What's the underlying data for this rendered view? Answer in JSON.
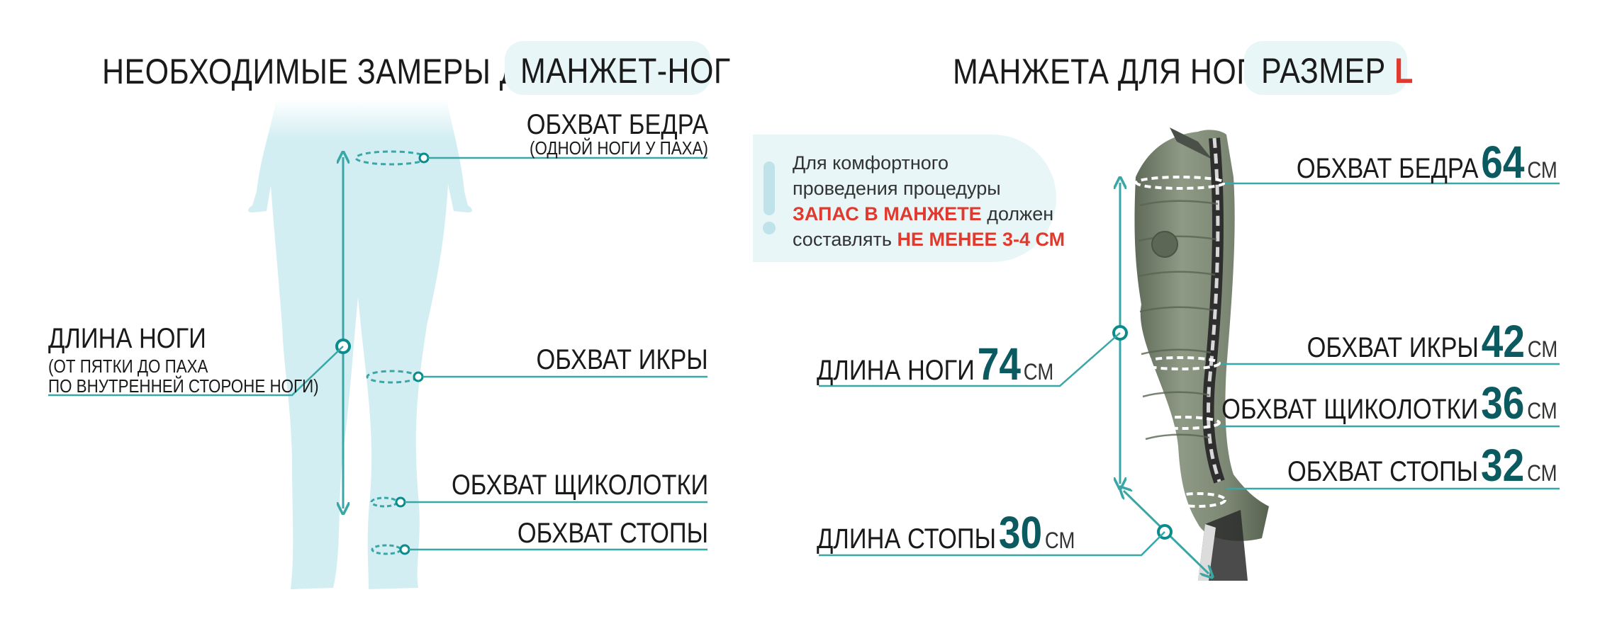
{
  "left": {
    "title": "НЕОБХОДИМЫЕ ЗАМЕРЫ ДЛЯ",
    "title_pill": "МАНЖЕТ-НОГ",
    "thigh_label": "ОБХВАТ БЕДРА",
    "thigh_sub": "(ОДНОЙ НОГИ У ПАХА)",
    "leg_length_label": "ДЛИНА НОГИ",
    "leg_length_sub1": "(ОТ ПЯТКИ ДО ПАХА",
    "leg_length_sub2": "ПО ВНУТРЕННЕЙ СТОРОНЕ НОГИ)",
    "calf_label": "ОБХВАТ ИКРЫ",
    "ankle_label": "ОБХВАТ ЩИКОЛОТКИ",
    "foot_label": "ОБХВАТ СТОПЫ"
  },
  "note": {
    "line1": "Для комфортного",
    "line2": "проведения процедуры",
    "line3_red": "ЗАПАС В МАНЖЕТЕ",
    "line3_rest": " должен",
    "line4": "составлять ",
    "line4_red": "НЕ МЕНЕЕ 3-4 СМ"
  },
  "right": {
    "title": "МАНЖЕТА ДЛЯ НОГИ",
    "size_label": "РАЗМЕР ",
    "size_value": "L",
    "unit": "СМ",
    "thigh_label": "ОБХВАТ БЕДРА",
    "thigh_value": "64",
    "calf_label": "ОБХВАТ ИКРЫ",
    "calf_value": "42",
    "ankle_label": "ОБХВАТ ЩИКОЛОТКИ",
    "ankle_value": "36",
    "foot_label": "ОБХВАТ СТОПЫ",
    "foot_value": "32",
    "leg_length_label": "ДЛИНА НОГИ",
    "leg_length_value": "74",
    "foot_length_label": "ДЛИНА СТОПЫ",
    "foot_length_value": "30"
  },
  "colors": {
    "teal": "#3aa6a6",
    "dark_teal": "#0a5a60",
    "silhouette": "#d3eef2",
    "pill": "#e8f6f8",
    "red": "#e03a2e",
    "cuff": "#7e8a76"
  }
}
